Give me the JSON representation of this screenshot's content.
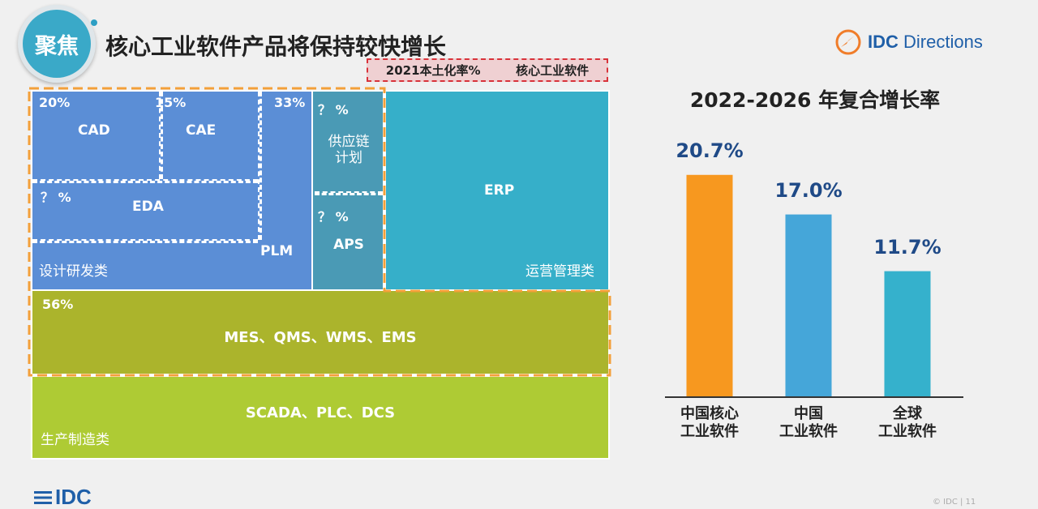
{
  "header": {
    "badge": "聚焦",
    "title": "核心工业软件产品将保持较快增长",
    "brand_strong": "IDC",
    "brand_light": "Directions"
  },
  "legend": {
    "rate_label": "2021本土化率%",
    "series_label": "核心工业软件"
  },
  "treemap": {
    "cad": {
      "label": "CAD",
      "pct": "20%"
    },
    "cae": {
      "label": "CAE",
      "pct": "15%"
    },
    "eda": {
      "label": "EDA",
      "pct": "？ %"
    },
    "plm": {
      "label": "PLM",
      "pct": "33%"
    },
    "design_group": "设计研发类",
    "scm": {
      "label": "供应链\n计划",
      "pct": "？ %"
    },
    "aps": {
      "label": "APS",
      "pct": "？ %"
    },
    "erp": {
      "label": "ERP"
    },
    "ops_group": "运营管理类",
    "mes": {
      "label": "MES、QMS、WMS、EMS",
      "pct": "56%"
    },
    "scada": {
      "label": "SCADA、PLC、DCS"
    },
    "mfg_group": "生产制造类",
    "colors": {
      "design": "#5b8ed6",
      "scm": "#4a9ab5",
      "erp": "#36afc9",
      "mes": "#abb42c",
      "scada": "#aecb34",
      "highlight": "#f3a03a",
      "legend_border": "#d8323a"
    }
  },
  "chart_data": {
    "type": "bar",
    "title": "2022-2026 年复合增长率",
    "categories": [
      "中国核心\n工业软件",
      "中国\n工业软件",
      "全球\n工业软件"
    ],
    "values": [
      20.7,
      17.0,
      11.7
    ],
    "value_labels": [
      "20.7%",
      "17.0%",
      "11.7%"
    ],
    "colors": [
      "#f7981f",
      "#45a6d9",
      "#35b1cc"
    ],
    "ylim": [
      0,
      25
    ],
    "grid": false,
    "xlabel": "",
    "ylabel": ""
  },
  "footer": {
    "logo": "IDC",
    "page": "© IDC |    11"
  }
}
